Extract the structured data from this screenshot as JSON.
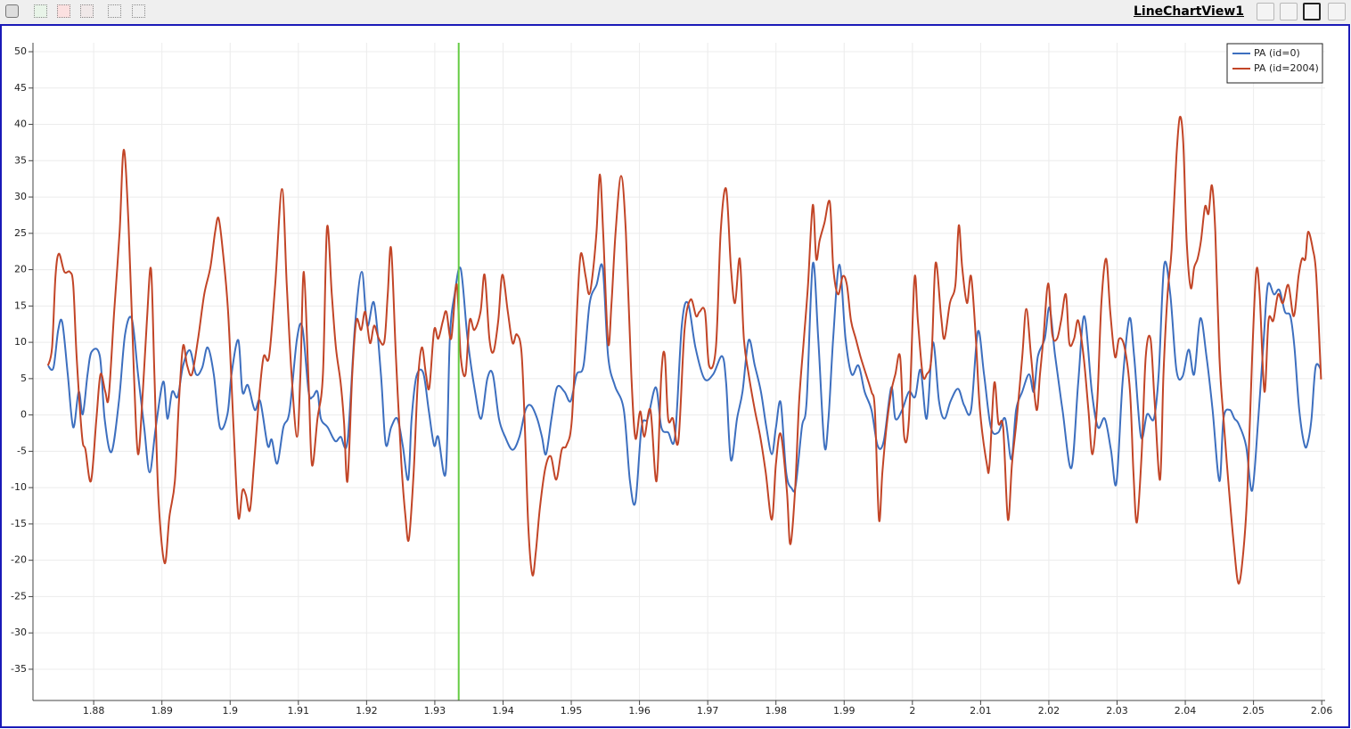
{
  "view": {
    "title": "LineChartView1"
  },
  "chart_data": {
    "type": "line",
    "xlim": [
      1.8711,
      2.0605
    ],
    "ylim": [
      -39.3,
      51.23
    ],
    "xticks": [
      1.88,
      1.89,
      1.9,
      1.91,
      1.92,
      1.93,
      1.94,
      1.95,
      1.96,
      1.97,
      1.98,
      1.99,
      2,
      2.01,
      2.02,
      2.03,
      2.04,
      2.05,
      2.06
    ],
    "yticks": [
      -35,
      -30,
      -25,
      -20,
      -15,
      -10,
      -5,
      0,
      5,
      10,
      15,
      20,
      25,
      30,
      35,
      40,
      45,
      50
    ],
    "grid": true,
    "legend_position": "top-right",
    "time_marker": {
      "x": 1.9335,
      "color": "#66cc44"
    },
    "series": [
      {
        "name": "PA (id=0)",
        "color": "#3d6fbf",
        "x": [
          1.8733,
          1.8741,
          1.8748,
          1.8754,
          1.8762,
          1.877,
          1.8778,
          1.8784,
          1.8791,
          1.8797,
          1.8809,
          1.8816,
          1.8826,
          1.8837,
          1.8846,
          1.8856,
          1.8865,
          1.8874,
          1.8882,
          1.8891,
          1.8902,
          1.8908,
          1.8915,
          1.8923,
          1.8931,
          1.8941,
          1.895,
          1.8959,
          1.8967,
          1.8976,
          1.8985,
          1.8996,
          1.9002,
          1.9012,
          1.9018,
          1.9026,
          1.9036,
          1.9044,
          1.9055,
          1.9061,
          1.9069,
          1.9078,
          1.9087,
          1.9098,
          1.9106,
          1.9115,
          1.9121,
          1.9128,
          1.9133,
          1.9143,
          1.9154,
          1.9162,
          1.9172,
          1.9183,
          1.9193,
          1.9201,
          1.9211,
          1.9221,
          1.9228,
          1.9236,
          1.9245,
          1.9253,
          1.9261,
          1.9266,
          1.9273,
          1.9283,
          1.9291,
          1.9299,
          1.9305,
          1.9316,
          1.9322,
          1.9329,
          1.9338,
          1.9348,
          1.9359,
          1.9368,
          1.9377,
          1.9385,
          1.9394,
          1.9403,
          1.9414,
          1.9424,
          1.9433,
          1.9441,
          1.945,
          1.9457,
          1.9463,
          1.9471,
          1.9479,
          1.949,
          1.9499,
          1.9508,
          1.9518,
          1.9527,
          1.9537,
          1.9546,
          1.9554,
          1.9564,
          1.9577,
          1.9586,
          1.9594,
          1.9603,
          1.9612,
          1.9624,
          1.9632,
          1.9642,
          1.9652,
          1.9662,
          1.9671,
          1.9682,
          1.9695,
          1.9708,
          1.9721,
          1.9727,
          1.9734,
          1.9743,
          1.9751,
          1.976,
          1.9769,
          1.9778,
          1.9786,
          1.9794,
          1.98,
          1.9807,
          1.9815,
          1.9823,
          1.9829,
          1.9838,
          1.9845,
          1.9854,
          1.9862,
          1.9871,
          1.9877,
          1.9884,
          1.9893,
          1.9902,
          1.9911,
          1.9921,
          1.993,
          1.994,
          1.9949,
          1.9958,
          1.9969,
          1.9975,
          1.9985,
          1.9995,
          2.0004,
          2.0012,
          2.0021,
          2.003,
          2.0039,
          2.0047,
          2.0056,
          2.0067,
          2.0076,
          2.0086,
          2.0096,
          2.0105,
          2.0115,
          2.0126,
          2.0136,
          2.0145,
          2.0152,
          2.0161,
          2.0171,
          2.0178,
          2.0184,
          2.0194,
          2.0201,
          2.0209,
          2.022,
          2.0233,
          2.0243,
          2.0252,
          2.0263,
          2.0272,
          2.0282,
          2.0291,
          2.0299,
          2.0308,
          2.0318,
          2.0325,
          2.0335,
          2.0344,
          2.0354,
          2.0361,
          2.0369,
          2.0378,
          2.0387,
          2.0396,
          2.0405,
          2.0413,
          2.0422,
          2.0431,
          2.044,
          2.045,
          2.0456,
          2.0465,
          2.0472,
          2.0478,
          2.0489,
          2.0498,
          2.0507,
          2.0515,
          2.0521,
          2.053,
          2.0538,
          2.0546,
          2.0554,
          2.056,
          2.0567,
          2.0575,
          2.058,
          2.0585,
          2.0591,
          2.0599
        ],
        "values": [
          6.8,
          6.5,
          11.7,
          12.7,
          5.6,
          -1.7,
          3.2,
          0.1,
          5.6,
          8.7,
          8.1,
          -0.5,
          -5.1,
          1.9,
          11.1,
          13.2,
          5.6,
          -1.7,
          -7.9,
          -1.7,
          4.6,
          -0.5,
          3.2,
          2.5,
          6.8,
          8.9,
          5.6,
          6.5,
          9.3,
          5.6,
          -1.7,
          0.1,
          5.6,
          10.3,
          3.2,
          4.1,
          0.7,
          1.9,
          -4.2,
          -3.4,
          -6.7,
          -1.7,
          0.5,
          10.5,
          12.0,
          3.2,
          2.5,
          3.2,
          -0.5,
          -1.7,
          -3.6,
          -3.0,
          -3.6,
          12.3,
          19.7,
          12.3,
          15.4,
          5.6,
          -4.0,
          -1.7,
          -0.5,
          -4.2,
          -8.9,
          -0.5,
          5.3,
          5.8,
          0.7,
          -4.2,
          -3.0,
          -7.9,
          10.5,
          16.6,
          20.1,
          10.5,
          3.2,
          -0.5,
          5.0,
          5.6,
          -0.5,
          -3.0,
          -4.8,
          -3.0,
          0.7,
          1.3,
          -0.5,
          -3.0,
          -5.4,
          -0.5,
          3.8,
          3.2,
          1.9,
          5.6,
          6.8,
          15.4,
          17.9,
          20.3,
          8.1,
          4.0,
          0.7,
          -9.1,
          -12.0,
          -1.7,
          -0.5,
          3.8,
          -1.7,
          -2.4,
          -3.0,
          12.3,
          15.4,
          9.3,
          5.0,
          5.6,
          8.1,
          4.4,
          -6.2,
          -0.5,
          3.2,
          10.3,
          6.8,
          3.2,
          -1.7,
          -5.4,
          -1.7,
          1.7,
          -7.9,
          -10.1,
          -9.7,
          -1.7,
          1.9,
          20.8,
          10.5,
          -4.2,
          -0.5,
          10.7,
          20.7,
          10.5,
          5.6,
          6.8,
          3.2,
          0.7,
          -4.2,
          -3.6,
          3.8,
          -0.5,
          0.7,
          3.2,
          2.5,
          6.2,
          -0.5,
          10.0,
          1.9,
          -0.5,
          1.9,
          3.6,
          1.3,
          0.7,
          11.5,
          5.6,
          -1.7,
          -2.4,
          -0.5,
          -6.1,
          0.7,
          3.2,
          5.6,
          3.2,
          8.1,
          10.5,
          14.8,
          8.3,
          0.7,
          -7.3,
          4.4,
          13.6,
          3.2,
          -1.7,
          -0.5,
          -4.8,
          -9.4,
          4.4,
          13.3,
          8.1,
          -3.0,
          0.1,
          -0.5,
          5.6,
          20.6,
          16.6,
          6.2,
          5.3,
          9.0,
          5.6,
          13.3,
          8.1,
          0.7,
          -9.1,
          -0.5,
          0.7,
          -0.5,
          -1.2,
          -4.2,
          -10.4,
          -0.5,
          10.5,
          17.9,
          16.6,
          17.2,
          14.2,
          13.6,
          9.3,
          0.7,
          -4.2,
          -3.6,
          -0.5,
          6.6,
          6.2
        ]
      },
      {
        "name": "PA (id=2004)",
        "color": "#c24527",
        "x": [
          1.8733,
          1.8739,
          1.8744,
          1.8749,
          1.8757,
          1.8765,
          1.877,
          1.8775,
          1.8783,
          1.8788,
          1.8796,
          1.8804,
          1.881,
          1.8817,
          1.8822,
          1.883,
          1.8838,
          1.8844,
          1.8851,
          1.8859,
          1.8865,
          1.8872,
          1.8878,
          1.8884,
          1.8889,
          1.8895,
          1.8904,
          1.8911,
          1.8919,
          1.8925,
          1.8931,
          1.8937,
          1.8944,
          1.8953,
          1.8962,
          1.8971,
          1.8978,
          1.8983,
          1.8989,
          1.8997,
          1.9005,
          1.9012,
          1.9018,
          1.9023,
          1.9029,
          1.9035,
          1.9042,
          1.9049,
          1.9057,
          1.9066,
          1.9076,
          1.9083,
          1.909,
          1.9098,
          1.9103,
          1.9108,
          1.9115,
          1.912,
          1.9128,
          1.9136,
          1.9142,
          1.9149,
          1.9155,
          1.9162,
          1.9167,
          1.9172,
          1.9179,
          1.9185,
          1.9192,
          1.9198,
          1.9205,
          1.9211,
          1.9218,
          1.9226,
          1.9231,
          1.9236,
          1.9243,
          1.9251,
          1.9257,
          1.9262,
          1.9269,
          1.9275,
          1.9281,
          1.9287,
          1.9292,
          1.9299,
          1.9305,
          1.9312,
          1.9317,
          1.9324,
          1.9332,
          1.9338,
          1.9345,
          1.9351,
          1.9358,
          1.9367,
          1.9373,
          1.938,
          1.9386,
          1.9393,
          1.9399,
          1.9407,
          1.9414,
          1.942,
          1.9427,
          1.9432,
          1.9437,
          1.9443,
          1.9448,
          1.9454,
          1.9462,
          1.947,
          1.9478,
          1.9486,
          1.9493,
          1.9501,
          1.9509,
          1.9514,
          1.9521,
          1.9526,
          1.9531,
          1.9537,
          1.9542,
          1.9547,
          1.9554,
          1.9559,
          1.9565,
          1.9573,
          1.958,
          1.9588,
          1.9594,
          1.9601,
          1.9607,
          1.9616,
          1.9625,
          1.9632,
          1.9637,
          1.9642,
          1.9649,
          1.9657,
          1.9666,
          1.9675,
          1.9683,
          1.9688,
          1.9696,
          1.9702,
          1.9712,
          1.9719,
          1.9727,
          1.9734,
          1.974,
          1.9747,
          1.9753,
          1.976,
          1.9769,
          1.9777,
          1.9785,
          1.9794,
          1.98,
          1.9807,
          1.9816,
          1.9821,
          1.9828,
          1.9834,
          1.9841,
          1.9847,
          1.9854,
          1.9859,
          1.9864,
          1.9871,
          1.9879,
          1.9884,
          1.9891,
          1.9898,
          1.9904,
          1.991,
          1.9917,
          1.9924,
          1.9932,
          1.994,
          1.9945,
          1.9951,
          1.9956,
          1.9962,
          1.9969,
          1.9975,
          1.9982,
          1.9988,
          1.9995,
          2.0003,
          2.0008,
          2.0015,
          2.0021,
          2.0028,
          2.0034,
          2.0042,
          2.0047,
          2.0055,
          2.0063,
          2.0068,
          2.0073,
          2.008,
          2.0086,
          2.0093,
          2.0099,
          2.0109,
          2.0113,
          2.012,
          2.0126,
          2.0133,
          2.014,
          2.0146,
          2.0153,
          2.0161,
          2.0167,
          2.0174,
          2.0182,
          2.0187,
          2.0192,
          2.0199,
          2.0205,
          2.0212,
          2.0218,
          2.0225,
          2.023,
          2.0237,
          2.0243,
          2.0251,
          2.0258,
          2.0264,
          2.0271,
          2.0277,
          2.0284,
          2.029,
          2.0297,
          2.0303,
          2.0311,
          2.0319,
          2.0324,
          2.0329,
          2.0336,
          2.0342,
          2.0349,
          2.0355,
          2.0363,
          2.0368,
          2.0374,
          2.038,
          2.0387,
          2.0392,
          2.0397,
          2.0402,
          2.0408,
          2.0413,
          2.0418,
          2.0423,
          2.0429,
          2.0434,
          2.0439,
          2.0444,
          2.045,
          2.0456,
          2.0463,
          2.0471,
          2.0478,
          2.0485,
          2.0491,
          2.0498,
          2.0504,
          2.0509,
          2.0516,
          2.0522,
          2.0529,
          2.0536,
          2.0543,
          2.0551,
          2.0559,
          2.0566,
          2.0571,
          2.0576,
          2.058,
          2.0587,
          2.0592,
          2.0599
        ],
        "values": [
          6.8,
          9.3,
          19.1,
          22.2,
          19.7,
          19.7,
          17.9,
          8.0,
          -3.0,
          -4.8,
          -9.1,
          -0.5,
          5.6,
          3.2,
          2.5,
          14.2,
          25.2,
          36.5,
          26.4,
          5.6,
          -5.4,
          3.2,
          13.0,
          20.1,
          5.6,
          -11.6,
          -20.4,
          -14.0,
          -9.1,
          1.9,
          9.5,
          6.8,
          5.6,
          10.5,
          16.6,
          20.3,
          25.2,
          27.1,
          22.8,
          14.2,
          -1.7,
          -14.0,
          -10.4,
          -11.0,
          -13.1,
          -6.7,
          1.9,
          8.0,
          8.0,
          17.9,
          31.1,
          17.9,
          5.6,
          -3.0,
          5.6,
          19.7,
          4.4,
          -6.9,
          -0.5,
          5.6,
          25.8,
          16.6,
          9.3,
          4.4,
          -1.1,
          -9.1,
          5.6,
          13.0,
          11.7,
          14.2,
          9.9,
          12.3,
          10.5,
          10.1,
          16.6,
          22.9,
          8.0,
          -6.7,
          -14.0,
          -17.1,
          -7.9,
          4.4,
          9.3,
          5.6,
          3.8,
          11.7,
          10.5,
          13.0,
          14.2,
          10.5,
          18.0,
          8.0,
          5.6,
          13.0,
          11.7,
          14.2,
          19.3,
          10.5,
          8.7,
          13.0,
          19.3,
          14.2,
          9.9,
          11.1,
          8.7,
          -1.7,
          -15.3,
          -22.0,
          -18.9,
          -12.8,
          -7.3,
          -5.7,
          -8.9,
          -4.8,
          -4.2,
          -0.5,
          15.4,
          22.2,
          19.1,
          16.6,
          19.1,
          25.2,
          33.1,
          24.6,
          9.9,
          15.4,
          25.2,
          32.9,
          25.2,
          5.6,
          -3.2,
          0.5,
          -3.0,
          0.7,
          -9.1,
          5.6,
          8.3,
          -0.5,
          -0.5,
          -3.6,
          11.7,
          15.9,
          13.6,
          14.2,
          14.2,
          6.8,
          9.3,
          25.2,
          31.1,
          20.3,
          15.4,
          21.5,
          10.5,
          5.6,
          0.7,
          -3.0,
          -7.9,
          -14.4,
          -6.7,
          -2.6,
          -10.4,
          -17.8,
          -10.4,
          1.9,
          10.5,
          17.9,
          28.9,
          21.5,
          24.0,
          26.4,
          29.3,
          20.3,
          16.6,
          19.1,
          17.9,
          13.0,
          10.5,
          8.0,
          5.6,
          3.2,
          0.7,
          -14.4,
          -7.9,
          -1.7,
          3.2,
          5.6,
          8.0,
          -3.0,
          -0.5,
          18.7,
          13.0,
          5.6,
          5.6,
          8.0,
          20.9,
          13.6,
          10.5,
          15.4,
          17.9,
          26.1,
          20.3,
          15.4,
          19.1,
          10.5,
          0.7,
          -6.7,
          -6.9,
          4.4,
          -1.1,
          -1.7,
          -14.4,
          -6.7,
          -0.5,
          8.0,
          14.6,
          8.0,
          0.7,
          5.6,
          10.5,
          18.1,
          11.1,
          10.5,
          13.0,
          16.6,
          9.9,
          10.5,
          13.0,
          8.0,
          0.7,
          -5.4,
          1.9,
          15.4,
          21.5,
          14.2,
          8.0,
          10.5,
          9.3,
          3.2,
          -7.9,
          -14.8,
          -5.4,
          8.0,
          10.5,
          1.9,
          -8.9,
          5.6,
          16.6,
          22.8,
          35.6,
          41.0,
          37.5,
          24.0,
          17.5,
          20.3,
          21.5,
          24.0,
          28.7,
          27.7,
          31.6,
          25.2,
          8.0,
          -0.5,
          -9.1,
          -17.7,
          -23.2,
          -18.9,
          -10.4,
          8.0,
          19.8,
          16.6,
          3.2,
          13.0,
          13.0,
          16.6,
          15.4,
          17.9,
          13.6,
          19.1,
          21.5,
          21.5,
          25.2,
          22.8,
          19.1,
          4.9
        ]
      }
    ]
  }
}
